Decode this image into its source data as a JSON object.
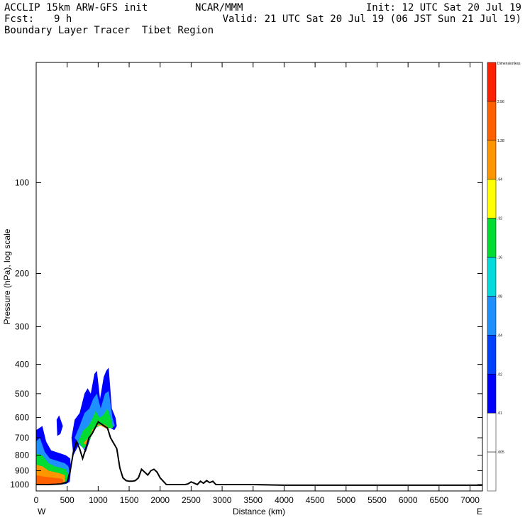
{
  "header": {
    "model": "ACCLIP 15km ARW-GFS init",
    "org": "NCAR/MMM",
    "init": "Init: 12 UTC Sat 20 Jul 19",
    "fcst_label": "Fcst:",
    "fcst_value": "9 h",
    "valid": "Valid: 21 UTC Sat 20 Jul 19 (06 JST Sun 21 Jul 19)",
    "title": "Boundary Layer Tracer  Tibet Region"
  },
  "chart_data": {
    "type": "area",
    "xlabel": "Distance (km)",
    "ylabel": "Pressure (hPa), log scale",
    "x_end_labels": [
      "W",
      "E"
    ],
    "xlim": [
      0,
      7200
    ],
    "ylim": [
      1050,
      40
    ],
    "y_scale": "log",
    "x_ticks": [
      0,
      500,
      1000,
      1500,
      2000,
      2500,
      3000,
      3500,
      4000,
      4500,
      5000,
      5500,
      6000,
      6500,
      7000
    ],
    "y_ticks": [
      100,
      200,
      300,
      400,
      500,
      600,
      700,
      800,
      900,
      1000
    ],
    "grid": false,
    "colorbar": {
      "title": "Dimensionless",
      "levels": [
        ".005",
        ".01",
        ".02",
        ".04",
        ".08",
        ".16",
        ".32",
        ".64",
        "1.28",
        "2.56"
      ],
      "colors": [
        "#ffffff",
        "#0000ff",
        "#0040ff",
        "#1e90ff",
        "#00dcdc",
        "#00dc32",
        "#ffff00",
        "#ff9600",
        "#ff6000",
        "#ff2000"
      ]
    },
    "terrain": {
      "name": "surface pressure",
      "color": "#000000",
      "x": [
        0,
        100,
        200,
        300,
        400,
        500,
        550,
        600,
        650,
        700,
        750,
        800,
        850,
        900,
        950,
        1000,
        1050,
        1100,
        1150,
        1200,
        1250,
        1300,
        1350,
        1400,
        1450,
        1500,
        1550,
        1600,
        1650,
        1700,
        1750,
        1800,
        1850,
        1900,
        1950,
        2000,
        2100,
        2200,
        2300,
        2400,
        2450,
        2500,
        2550,
        2600,
        2650,
        2700,
        2750,
        2800,
        2850,
        2900,
        3000,
        3500,
        4000,
        4500,
        5000,
        5500,
        6000,
        6500,
        7000,
        7200
      ],
      "y": [
        1000,
        1000,
        1000,
        998,
        995,
        980,
        900,
        780,
        720,
        760,
        820,
        760,
        700,
        680,
        650,
        620,
        630,
        640,
        650,
        700,
        730,
        760,
        880,
        950,
        970,
        975,
        975,
        970,
        950,
        890,
        910,
        930,
        900,
        890,
        910,
        950,
        1000,
        1000,
        1000,
        1000,
        995,
        980,
        990,
        1000,
        975,
        990,
        970,
        985,
        975,
        1000,
        1000,
        1000,
        1005,
        1005,
        1005,
        1005,
        1005,
        1005,
        1005,
        1005
      ]
    },
    "tracer_regions": [
      {
        "level": ".01",
        "x": [
          0,
          100,
          160,
          240,
          320,
          400,
          480,
          550,
          560,
          540,
          480,
          400,
          320,
          240,
          160,
          80,
          0
        ],
        "y": [
          660,
          640,
          720,
          770,
          780,
          790,
          800,
          820,
          900,
          980,
          995,
          1000,
          1000,
          1000,
          1000,
          1000,
          1000
        ]
      },
      {
        "level": ".01",
        "x": [
          330,
          370,
          430,
          390,
          340
        ],
        "y": [
          610,
          590,
          640,
          680,
          690
        ]
      },
      {
        "level": ".01",
        "x": [
          570,
          620,
          700,
          780,
          830,
          880,
          940,
          980,
          1030,
          1090,
          1130,
          1170,
          1220,
          1280,
          1300,
          1260,
          1200,
          1100,
          1000,
          900,
          800,
          700,
          600
        ],
        "y": [
          700,
          610,
          580,
          500,
          480,
          500,
          430,
          420,
          520,
          440,
          420,
          410,
          560,
          600,
          640,
          660,
          650,
          640,
          620,
          680,
          780,
          730,
          800
        ]
      },
      {
        "level": ".04",
        "x": [
          0,
          60,
          140,
          220,
          300,
          380,
          460,
          520,
          540,
          500,
          400,
          300,
          200,
          100,
          0
        ],
        "y": [
          720,
          700,
          780,
          820,
          830,
          840,
          850,
          870,
          920,
          985,
          1000,
          1000,
          1000,
          1000,
          1000
        ]
      },
      {
        "level": ".04",
        "x": [
          620,
          700,
          780,
          860,
          920,
          980,
          1040,
          1110,
          1170,
          1230,
          1270,
          1200,
          1100,
          1000,
          900,
          800,
          700
        ],
        "y": [
          700,
          640,
          580,
          560,
          520,
          500,
          560,
          500,
          490,
          600,
          640,
          650,
          640,
          630,
          670,
          770,
          740
        ]
      },
      {
        "level": ".16",
        "x": [
          0,
          100,
          200,
          300,
          400,
          480,
          520,
          480,
          400,
          300,
          200,
          100,
          0
        ],
        "y": [
          790,
          800,
          850,
          870,
          880,
          890,
          930,
          990,
          1000,
          1000,
          1000,
          1000,
          1000
        ]
      },
      {
        "level": ".16",
        "x": [
          680,
          760,
          840,
          900,
          960,
          1020,
          1080,
          1150,
          1220,
          1240,
          1150,
          1050,
          950,
          850,
          760
        ],
        "y": [
          720,
          660,
          640,
          610,
          570,
          600,
          590,
          560,
          620,
          650,
          650,
          635,
          650,
          720,
          760
        ]
      },
      {
        "level": ".64",
        "x": [
          0,
          100,
          200,
          300,
          400,
          460,
          470,
          400,
          300,
          200,
          100,
          0
        ],
        "y": [
          860,
          870,
          900,
          910,
          920,
          930,
          980,
          1000,
          1000,
          1000,
          1000,
          1000
        ]
      },
      {
        "level": ".64",
        "x": [
          760,
          840,
          900,
          960,
          1020,
          1080,
          1140,
          1180,
          1100,
          1000,
          900,
          820
        ],
        "y": [
          730,
          700,
          670,
          640,
          640,
          630,
          640,
          660,
          648,
          632,
          660,
          740
        ]
      },
      {
        "level": "1.28",
        "x": [
          0,
          100,
          200,
          300,
          400,
          440,
          420,
          300,
          200,
          100,
          0
        ],
        "y": [
          930,
          940,
          945,
          950,
          955,
          965,
          998,
          1000,
          1000,
          1000,
          1000
        ]
      }
    ]
  }
}
